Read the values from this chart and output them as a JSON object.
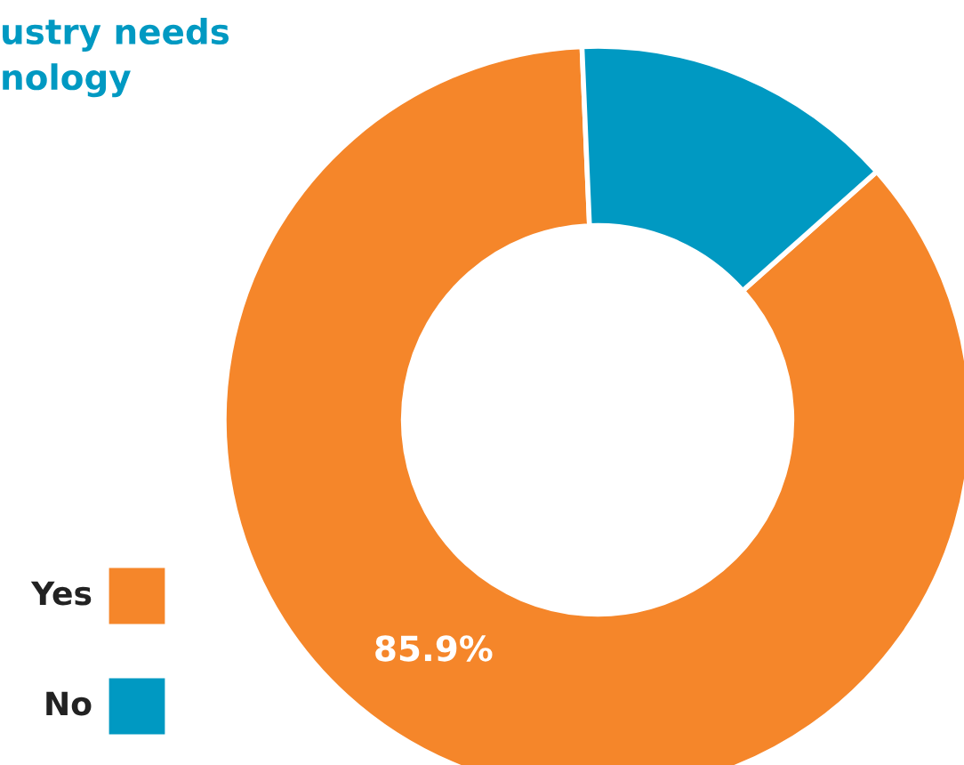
{
  "chart_data": {
    "type": "donut",
    "title": "ustry needs\nnology",
    "categories": [
      "Yes",
      "No"
    ],
    "values": [
      85.9,
      14.1
    ],
    "colors": [
      "#f5862a",
      "#0099c2"
    ],
    "value_labels": [
      "85.9%",
      null
    ],
    "legend": "bottom left"
  }
}
